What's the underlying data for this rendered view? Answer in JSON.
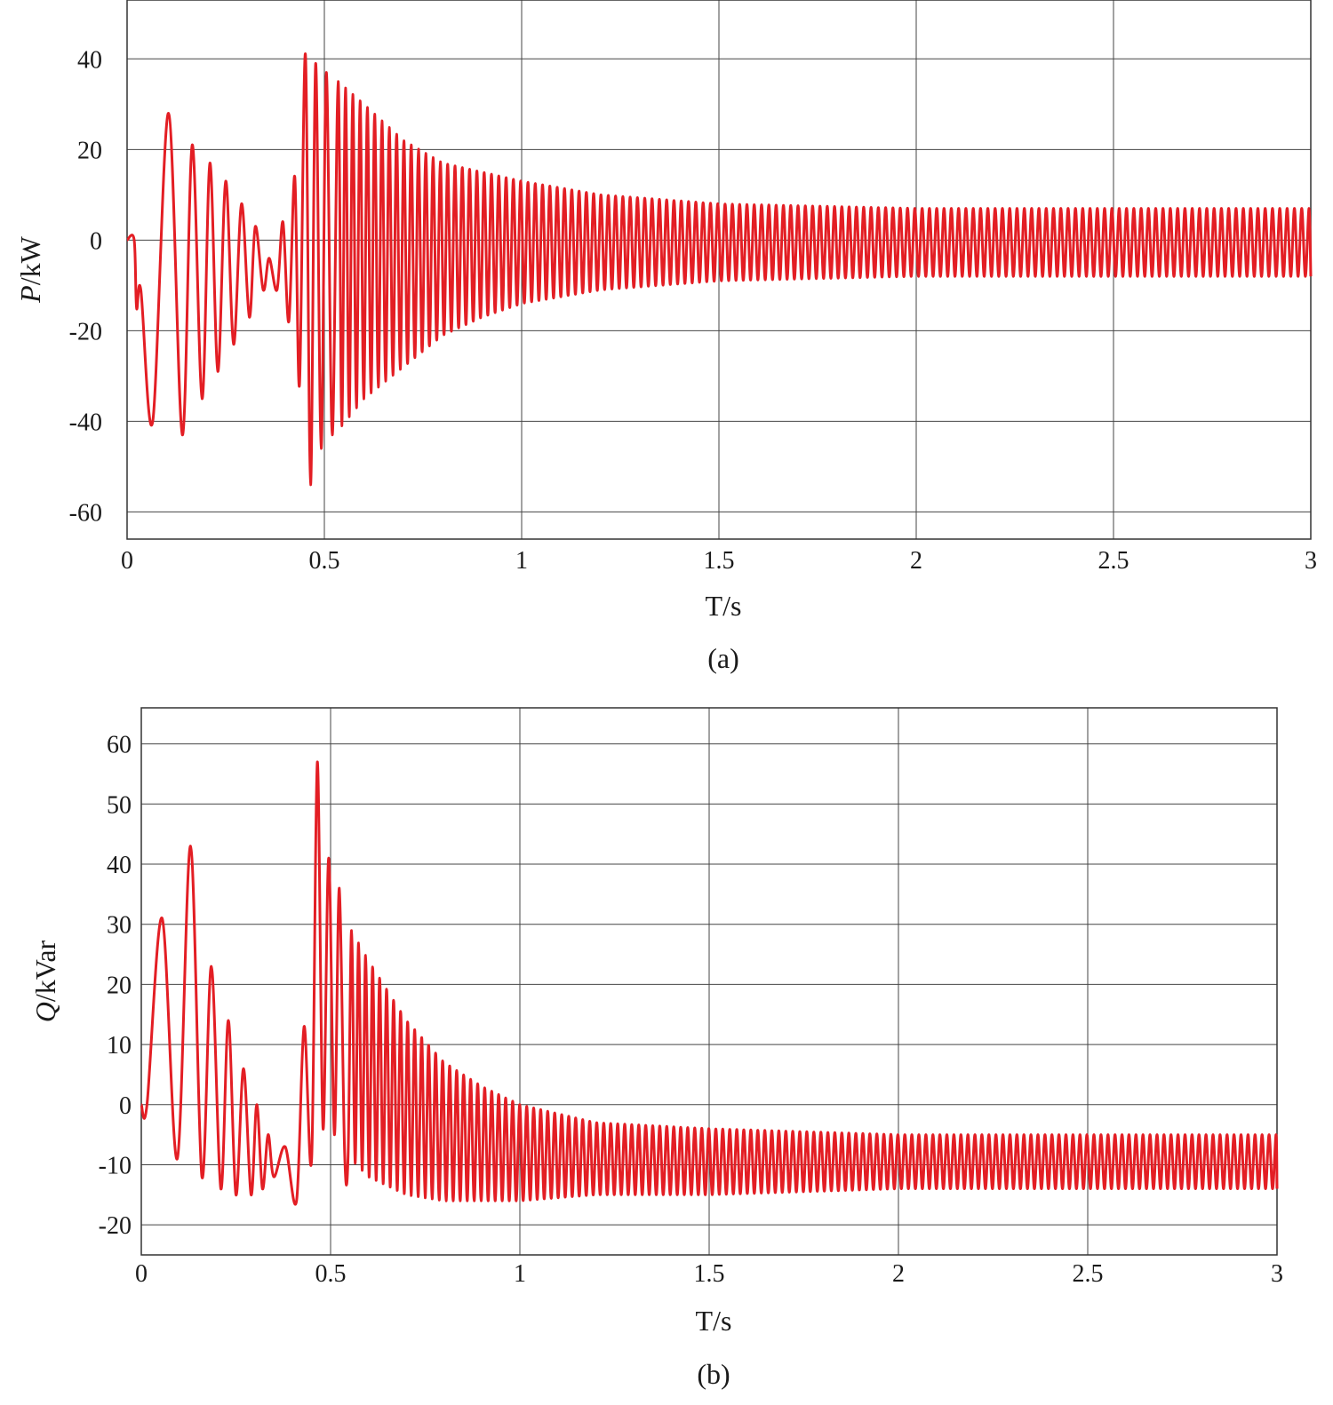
{
  "colors": {
    "trace": "#e31e24",
    "grid": "#444444"
  },
  "chart_data": [
    {
      "type": "line",
      "caption": "(a)",
      "ylabel_italic": "P",
      "ylabel_unit": "/kW",
      "xlabel": "T/s",
      "xlim": [
        0,
        3
      ],
      "ylim": [
        -66,
        53
      ],
      "xticks": [
        0,
        0.5,
        1,
        1.5,
        2,
        2.5,
        3
      ],
      "xtick_labels": [
        "0",
        "0.5",
        "1",
        "1.5",
        "2",
        "2.5",
        "3"
      ],
      "yticks": [
        40,
        20,
        0,
        -20,
        -40,
        -60
      ],
      "ytick_labels": [
        "40",
        "20",
        "0",
        "-20",
        "-40",
        "-60"
      ],
      "grid": true,
      "series": [
        {
          "waveform": [
            [
              0.0,
              0
            ],
            [
              0.018,
              0
            ],
            [
              0.024,
              -15
            ],
            [
              0.035,
              -11
            ],
            [
              0.065,
              -40
            ],
            [
              0.105,
              28
            ],
            [
              0.14,
              -43
            ],
            [
              0.165,
              21
            ],
            [
              0.19,
              -35
            ],
            [
              0.21,
              17
            ],
            [
              0.23,
              -29
            ],
            [
              0.25,
              13
            ],
            [
              0.27,
              -23
            ],
            [
              0.29,
              8
            ],
            [
              0.31,
              -17
            ],
            [
              0.325,
              3
            ],
            [
              0.345,
              -11
            ],
            [
              0.36,
              -4
            ],
            [
              0.38,
              -11
            ],
            [
              0.395,
              4
            ],
            [
              0.41,
              -18
            ],
            [
              0.425,
              14
            ],
            [
              0.437,
              -32
            ],
            [
              0.452,
              41
            ],
            [
              0.465,
              -54
            ],
            [
              0.478,
              39
            ],
            [
              0.492,
              -46
            ],
            [
              0.505,
              37
            ],
            [
              0.52,
              -43
            ],
            [
              0.535,
              35
            ]
          ],
          "envelope": [
            [
              0.535,
              35,
              -42
            ],
            [
              0.6,
              30,
              -35
            ],
            [
              0.7,
              22,
              -28
            ],
            [
              0.8,
              17,
              -21
            ],
            [
              0.9,
              15,
              -17
            ],
            [
              1.0,
              13,
              -14
            ],
            [
              1.2,
              10,
              -11
            ],
            [
              1.5,
              8,
              -9
            ],
            [
              2.0,
              7,
              -8
            ],
            [
              3.0,
              7,
              -8
            ]
          ],
          "oscillation_period_s": 0.0185
        }
      ]
    },
    {
      "type": "line",
      "caption": "(b)",
      "ylabel_italic": "Q",
      "ylabel_unit": "/kVar",
      "xlabel": "T/s",
      "xlim": [
        0,
        3
      ],
      "ylim": [
        -25,
        66
      ],
      "xticks": [
        0,
        0.5,
        1,
        1.5,
        2,
        2.5,
        3
      ],
      "xtick_labels": [
        "0",
        "0.5",
        "1",
        "1.5",
        "2",
        "2.5",
        "3"
      ],
      "yticks": [
        60,
        50,
        40,
        30,
        20,
        10,
        0,
        -10,
        -20
      ],
      "ytick_labels": [
        "60",
        "50",
        "40",
        "30",
        "20",
        "10",
        "0",
        "-10",
        "-20"
      ],
      "grid": true,
      "series": [
        {
          "waveform": [
            [
              0.0,
              0
            ],
            [
              0.015,
              0
            ],
            [
              0.055,
              31
            ],
            [
              0.095,
              -9
            ],
            [
              0.13,
              43
            ],
            [
              0.16,
              -12
            ],
            [
              0.185,
              23
            ],
            [
              0.21,
              -14
            ],
            [
              0.23,
              14
            ],
            [
              0.25,
              -15
            ],
            [
              0.27,
              6
            ],
            [
              0.29,
              -15
            ],
            [
              0.305,
              0
            ],
            [
              0.32,
              -14
            ],
            [
              0.335,
              -5
            ],
            [
              0.35,
              -12
            ],
            [
              0.38,
              -7
            ],
            [
              0.41,
              -16
            ],
            [
              0.43,
              13
            ],
            [
              0.45,
              -9
            ],
            [
              0.465,
              57
            ],
            [
              0.48,
              -4
            ],
            [
              0.495,
              41
            ],
            [
              0.51,
              -5
            ],
            [
              0.523,
              36
            ],
            [
              0.537,
              -8
            ]
          ],
          "envelope": [
            [
              0.537,
              31,
              -8
            ],
            [
              0.6,
              24,
              -12
            ],
            [
              0.7,
              14,
              -15
            ],
            [
              0.8,
              7,
              -16
            ],
            [
              0.9,
              3,
              -16
            ],
            [
              1.0,
              0,
              -16
            ],
            [
              1.2,
              -3,
              -15
            ],
            [
              1.5,
              -4,
              -15
            ],
            [
              2.0,
              -5,
              -14
            ],
            [
              3.0,
              -5,
              -14
            ]
          ],
          "oscillation_period_s": 0.0185
        }
      ]
    }
  ]
}
